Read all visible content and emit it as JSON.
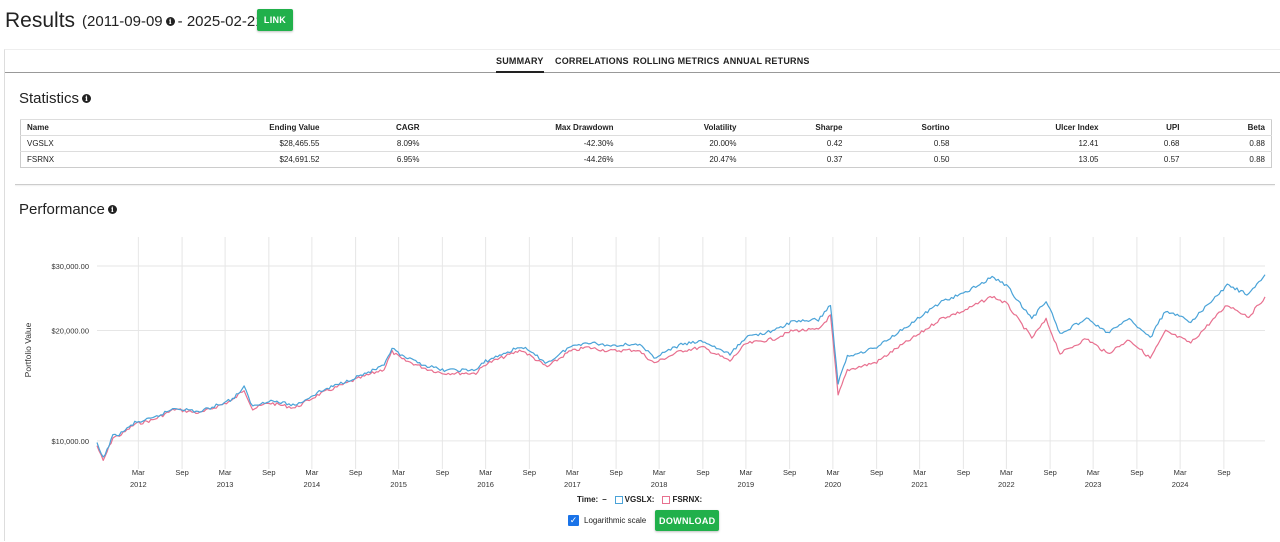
{
  "header": {
    "title": "Results",
    "range_start": "(2011-09-09",
    "range_end": "- 2025-02-21)",
    "link_label": "LINK"
  },
  "tabs": [
    {
      "label": "SUMMARY",
      "active": true
    },
    {
      "label": "CORRELATIONS",
      "active": false
    },
    {
      "label": "ROLLING METRICS",
      "active": false
    },
    {
      "label": "ANNUAL RETURNS",
      "active": false
    }
  ],
  "statistics": {
    "title": "Statistics",
    "columns": [
      "Name",
      "Ending Value",
      "CAGR",
      "Max Drawdown",
      "Volatility",
      "Sharpe",
      "Sortino",
      "Ulcer Index",
      "UPI",
      "Beta"
    ],
    "rows": [
      [
        "VGSLX",
        "$28,465.55",
        "8.09%",
        "-42.30%",
        "20.00%",
        "0.42",
        "0.58",
        "12.41",
        "0.68",
        "0.88"
      ],
      [
        "FSRNX",
        "$24,691.52",
        "6.95%",
        "-44.26%",
        "20.47%",
        "0.37",
        "0.50",
        "13.05",
        "0.57",
        "0.88"
      ]
    ]
  },
  "performance": {
    "title": "Performance"
  },
  "chart_data": {
    "type": "line",
    "ylabel": "Portfolio Value",
    "yscale": "log",
    "ylim": [
      8700,
      36000
    ],
    "y_ticks": [
      "$10,000.00",
      "$20,000.00",
      "$30,000.00"
    ],
    "y_tick_values": [
      10000,
      20000,
      30000
    ],
    "x_ticks": [
      {
        "month": "Mar",
        "year": "2012"
      },
      {
        "month": "Sep",
        "year": ""
      },
      {
        "month": "Mar",
        "year": "2013"
      },
      {
        "month": "Sep",
        "year": ""
      },
      {
        "month": "Mar",
        "year": "2014"
      },
      {
        "month": "Sep",
        "year": ""
      },
      {
        "month": "Mar",
        "year": "2015"
      },
      {
        "month": "Sep",
        "year": ""
      },
      {
        "month": "Mar",
        "year": "2016"
      },
      {
        "month": "Sep",
        "year": ""
      },
      {
        "month": "Mar",
        "year": "2017"
      },
      {
        "month": "Sep",
        "year": ""
      },
      {
        "month": "Mar",
        "year": "2018"
      },
      {
        "month": "Sep",
        "year": ""
      },
      {
        "month": "Mar",
        "year": "2019"
      },
      {
        "month": "Sep",
        "year": ""
      },
      {
        "month": "Mar",
        "year": "2020"
      },
      {
        "month": "Sep",
        "year": ""
      },
      {
        "month": "Mar",
        "year": "2021"
      },
      {
        "month": "Sep",
        "year": ""
      },
      {
        "month": "Mar",
        "year": "2022"
      },
      {
        "month": "Sep",
        "year": ""
      },
      {
        "month": "Mar",
        "year": "2023"
      },
      {
        "month": "Sep",
        "year": ""
      },
      {
        "month": "Mar",
        "year": "2024"
      },
      {
        "month": "Sep",
        "year": ""
      }
    ],
    "x_range": [
      "2011-09-09",
      "2025-02-21"
    ],
    "series": [
      {
        "name": "VGSLX",
        "color": "#4aa3d8",
        "points": [
          [
            "2011-09-09",
            9800
          ],
          [
            "2011-10-05",
            8950
          ],
          [
            "2011-11-15",
            10300
          ],
          [
            "2011-12-20",
            10500
          ],
          [
            "2012-02-15",
            11200
          ],
          [
            "2012-05-01",
            11500
          ],
          [
            "2012-08-01",
            12300
          ],
          [
            "2012-11-15",
            12000
          ],
          [
            "2013-04-01",
            13000
          ],
          [
            "2013-05-20",
            14000
          ],
          [
            "2013-06-25",
            12400
          ],
          [
            "2013-09-01",
            12900
          ],
          [
            "2013-12-20",
            12500
          ],
          [
            "2014-04-01",
            13600
          ],
          [
            "2014-08-20",
            14800
          ],
          [
            "2014-12-30",
            16000
          ],
          [
            "2015-02-01",
            17900
          ],
          [
            "2015-03-15",
            17000
          ],
          [
            "2015-06-30",
            16000
          ],
          [
            "2015-09-01",
            15600
          ],
          [
            "2016-01-20",
            15600
          ],
          [
            "2016-03-01",
            16500
          ],
          [
            "2016-07-30",
            18100
          ],
          [
            "2016-11-15",
            16300
          ],
          [
            "2017-02-15",
            18000
          ],
          [
            "2017-05-01",
            18600
          ],
          [
            "2017-08-01",
            18200
          ],
          [
            "2017-12-01",
            18400
          ],
          [
            "2018-02-08",
            16900
          ],
          [
            "2018-06-01",
            18300
          ],
          [
            "2018-09-01",
            18700
          ],
          [
            "2018-12-24",
            17200
          ],
          [
            "2019-03-01",
            19200
          ],
          [
            "2019-06-30",
            20000
          ],
          [
            "2019-09-15",
            21200
          ],
          [
            "2019-12-31",
            21400
          ],
          [
            "2020-02-20",
            23500
          ],
          [
            "2020-03-23",
            14400
          ],
          [
            "2020-05-01",
            17000
          ],
          [
            "2020-09-01",
            18000
          ],
          [
            "2020-12-01",
            19800
          ],
          [
            "2021-03-01",
            21700
          ],
          [
            "2021-06-01",
            24000
          ],
          [
            "2021-09-01",
            25200
          ],
          [
            "2021-12-31",
            28000
          ],
          [
            "2022-03-01",
            26600
          ],
          [
            "2022-06-16",
            21500
          ],
          [
            "2022-08-15",
            24200
          ],
          [
            "2022-10-13",
            19600
          ],
          [
            "2023-02-01",
            21600
          ],
          [
            "2023-05-01",
            19700
          ],
          [
            "2023-07-31",
            21500
          ],
          [
            "2023-10-27",
            19100
          ],
          [
            "2023-12-31",
            22700
          ],
          [
            "2024-04-15",
            21100
          ],
          [
            "2024-09-15",
            26600
          ],
          [
            "2024-12-15",
            25000
          ],
          [
            "2025-02-21",
            28400
          ]
        ]
      },
      {
        "name": "FSRNX",
        "color": "#e8708f",
        "points": [
          [
            "2011-09-09",
            9700
          ],
          [
            "2011-10-05",
            8800
          ],
          [
            "2011-11-15",
            10200
          ],
          [
            "2011-12-20",
            10400
          ],
          [
            "2012-02-15",
            11100
          ],
          [
            "2012-05-01",
            11400
          ],
          [
            "2012-08-01",
            12200
          ],
          [
            "2012-11-15",
            11900
          ],
          [
            "2013-04-01",
            12900
          ],
          [
            "2013-05-20",
            13800
          ],
          [
            "2013-06-25",
            12200
          ],
          [
            "2013-09-01",
            12700
          ],
          [
            "2013-12-20",
            12300
          ],
          [
            "2014-04-01",
            13400
          ],
          [
            "2014-08-20",
            14600
          ],
          [
            "2014-12-30",
            15700
          ],
          [
            "2015-02-01",
            17500
          ],
          [
            "2015-03-15",
            16700
          ],
          [
            "2015-06-30",
            15700
          ],
          [
            "2015-09-01",
            15300
          ],
          [
            "2016-01-20",
            15300
          ],
          [
            "2016-03-01",
            16200
          ],
          [
            "2016-07-30",
            17700
          ],
          [
            "2016-11-15",
            15900
          ],
          [
            "2017-02-15",
            17500
          ],
          [
            "2017-05-01",
            18000
          ],
          [
            "2017-08-01",
            17600
          ],
          [
            "2017-12-01",
            17700
          ],
          [
            "2018-02-08",
            16300
          ],
          [
            "2018-06-01",
            17600
          ],
          [
            "2018-09-01",
            18000
          ],
          [
            "2018-12-24",
            16500
          ],
          [
            "2019-03-01",
            18400
          ],
          [
            "2019-06-30",
            19000
          ],
          [
            "2019-09-15",
            20000
          ],
          [
            "2019-12-31",
            20100
          ],
          [
            "2020-02-20",
            22000
          ],
          [
            "2020-03-23",
            13300
          ],
          [
            "2020-05-01",
            15600
          ],
          [
            "2020-09-01",
            16400
          ],
          [
            "2020-12-01",
            18000
          ],
          [
            "2021-03-01",
            19600
          ],
          [
            "2021-06-01",
            21600
          ],
          [
            "2021-09-01",
            22600
          ],
          [
            "2021-12-31",
            24800
          ],
          [
            "2022-03-01",
            23700
          ],
          [
            "2022-06-16",
            19100
          ],
          [
            "2022-08-15",
            21400
          ],
          [
            "2022-10-13",
            17300
          ],
          [
            "2023-02-01",
            19000
          ],
          [
            "2023-05-01",
            17300
          ],
          [
            "2023-07-31",
            18900
          ],
          [
            "2023-10-27",
            16800
          ],
          [
            "2023-12-31",
            19900
          ],
          [
            "2024-04-15",
            18500
          ],
          [
            "2024-09-15",
            23500
          ],
          [
            "2024-12-15",
            21800
          ],
          [
            "2025-02-21",
            24700
          ]
        ]
      }
    ]
  },
  "legend": {
    "time_label": "Time:",
    "time_value": "–",
    "items": [
      {
        "label": "VGSLX:"
      },
      {
        "label": "FSRNX:"
      }
    ]
  },
  "controls": {
    "log_label": "Logarithmic scale",
    "download_label": "DOWNLOAD"
  }
}
